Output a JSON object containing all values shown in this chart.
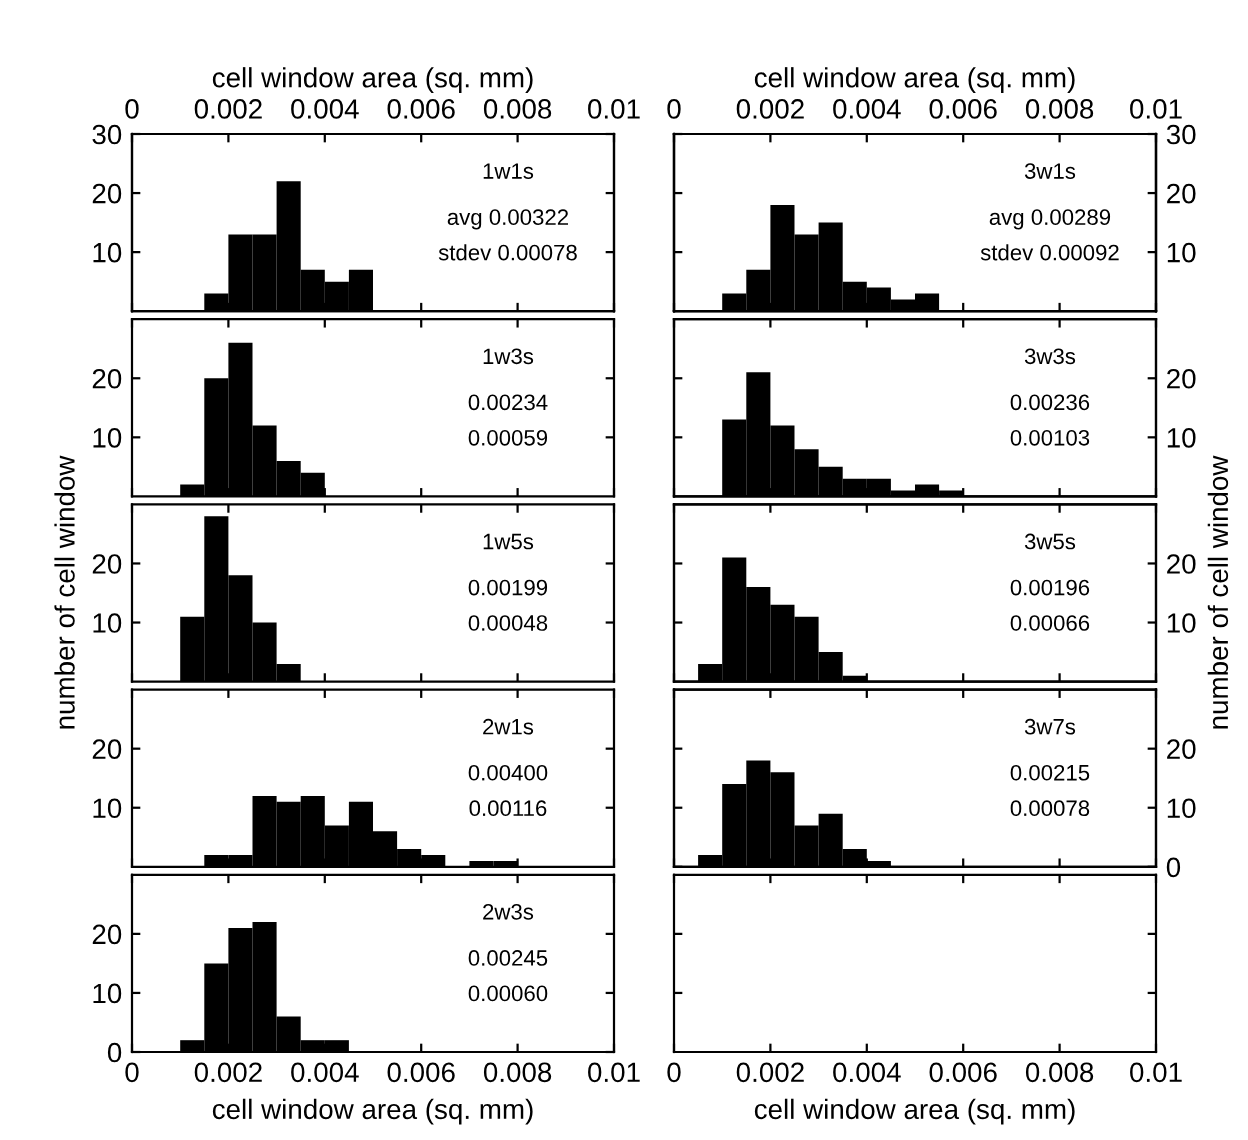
{
  "chart_data": [
    {
      "type": "histogram",
      "annotations": [
        "1w1s",
        "avg 0.00322",
        "stdev 0.00078"
      ],
      "bins": [
        0.0015,
        0.002,
        0.0025,
        0.003,
        0.0035,
        0.004,
        0.0045,
        0.005
      ],
      "values": [
        3,
        13,
        13,
        22,
        7,
        5,
        7
      ],
      "color": "#000000",
      "xlim": [
        0,
        0.01
      ],
      "xticks": [
        0,
        0.002,
        0.004,
        0.006,
        0.008,
        0.01
      ],
      "x2lim": [
        0,
        0.01
      ],
      "x2ticks": [
        0,
        0.002,
        0.004,
        0.006,
        0.008,
        0.01
      ],
      "x2label": "cell window area (sq. mm)",
      "ylim": [
        0,
        30
      ],
      "yticks": [
        10,
        20,
        30
      ],
      "tick_labels": "y",
      "grid": false
    },
    {
      "type": "histogram",
      "annotations": [
        "3w1s",
        "avg 0.00289",
        "stdev 0.00092"
      ],
      "bins": [
        0.001,
        0.0015,
        0.002,
        0.0025,
        0.003,
        0.0035,
        0.004,
        0.0045,
        0.005,
        0.0055
      ],
      "series": [
        {
          "axis": "y2",
          "color": "#000000",
          "values": [
            3,
            7,
            18,
            13,
            15,
            5,
            4,
            2,
            3
          ]
        }
      ],
      "xlim": [
        0,
        0.01
      ],
      "xticks": [
        0,
        0.002,
        0.004,
        0.006,
        0.008,
        0.01
      ],
      "x2lim": [
        0,
        0.01
      ],
      "x2ticks": [
        0,
        0.002,
        0.004,
        0.006,
        0.008,
        0.01
      ],
      "x2label": "cell window area (sq. mm)",
      "y2lim": [
        0,
        30
      ],
      "y2ticks": [
        10,
        20,
        30
      ],
      "tick_labels": "y",
      "grid": false
    },
    {
      "type": "histogram",
      "annotations": [
        "1w3s",
        "0.00234",
        "0.00059"
      ],
      "bins": [
        0.001,
        0.0015,
        0.002,
        0.0025,
        0.003,
        0.0035,
        0.004
      ],
      "values": [
        2,
        20,
        26,
        12,
        6,
        4
      ],
      "color": "#000000",
      "xlim": [
        0,
        0.01
      ],
      "xticks": [
        0,
        0.002,
        0.004,
        0.006,
        0.008,
        0.01
      ],
      "ylim": [
        0,
        30
      ],
      "yticks": [
        10,
        20
      ],
      "tick_labels": "y",
      "grid": false
    },
    {
      "type": "histogram",
      "annotations": [
        "3w3s",
        "0.00236",
        "0.00103"
      ],
      "bins": [
        0.001,
        0.0015,
        0.002,
        0.0025,
        0.003,
        0.0035,
        0.004,
        0.0045,
        0.005,
        0.0055,
        0.006
      ],
      "series": [
        {
          "axis": "y2",
          "color": "#000000",
          "values": [
            13,
            21,
            12,
            8,
            5,
            3,
            3,
            1,
            2,
            1
          ]
        }
      ],
      "xlim": [
        0,
        0.01
      ],
      "xticks": [
        0,
        0.002,
        0.004,
        0.006,
        0.008,
        0.01
      ],
      "y2lim": [
        0,
        30
      ],
      "y2ticks": [
        10,
        20
      ],
      "tick_labels": "y",
      "grid": false
    },
    {
      "type": "histogram",
      "annotations": [
        "1w5s",
        "0.00199",
        "0.00048"
      ],
      "bins": [
        0.001,
        0.0015,
        0.002,
        0.0025,
        0.003,
        0.0035
      ],
      "values": [
        11,
        28,
        18,
        10,
        3
      ],
      "color": "#000000",
      "xlim": [
        0,
        0.01
      ],
      "xticks": [
        0,
        0.002,
        0.004,
        0.006,
        0.008,
        0.01
      ],
      "ylim": [
        0,
        30
      ],
      "yticks": [
        10,
        20
      ],
      "ylabel": "number of cell window",
      "tick_labels": "y",
      "grid": false
    },
    {
      "type": "histogram",
      "annotations": [
        "3w5s",
        "0.00196",
        "0.00066"
      ],
      "bins": [
        0.0005,
        0.001,
        0.0015,
        0.002,
        0.0025,
        0.003,
        0.0035,
        0.004
      ],
      "series": [
        {
          "axis": "y2",
          "color": "#000000",
          "values": [
            3,
            21,
            16,
            13,
            11,
            5,
            1
          ]
        }
      ],
      "xlim": [
        0,
        0.01
      ],
      "xticks": [
        0,
        0.002,
        0.004,
        0.006,
        0.008,
        0.01
      ],
      "y2lim": [
        0,
        30
      ],
      "y2ticks": [
        10,
        20
      ],
      "y2label": "number of cell window",
      "tick_labels": "y",
      "grid": false
    },
    {
      "type": "histogram",
      "annotations": [
        "2w1s",
        "0.00400",
        "0.00116"
      ],
      "bins": [
        0.0015,
        0.002,
        0.0025,
        0.003,
        0.0035,
        0.004,
        0.0045,
        0.005,
        0.0055,
        0.006,
        0.0065,
        0.007,
        0.0075,
        0.008
      ],
      "values": [
        2,
        2,
        12,
        11,
        12,
        7,
        11,
        6,
        3,
        2,
        0,
        1,
        1
      ],
      "color": "#000000",
      "xlim": [
        0,
        0.01
      ],
      "xticks": [
        0,
        0.002,
        0.004,
        0.006,
        0.008,
        0.01
      ],
      "ylim": [
        0,
        30
      ],
      "yticks": [
        10,
        20
      ],
      "tick_labels": "y",
      "grid": false
    },
    {
      "type": "histogram",
      "annotations": [
        "3w7s",
        "0.00215",
        "0.00078"
      ],
      "bins": [
        0.0005,
        0.001,
        0.0015,
        0.002,
        0.0025,
        0.003,
        0.0035,
        0.004,
        0.0045
      ],
      "series": [
        {
          "axis": "y2",
          "color": "#000000",
          "values": [
            2,
            14,
            18,
            16,
            7,
            9,
            3,
            1
          ]
        }
      ],
      "xlim": [
        0,
        0.01
      ],
      "xticks": [
        0,
        0.002,
        0.004,
        0.006,
        0.008,
        0.01
      ],
      "y2lim": [
        0,
        30
      ],
      "y2ticks": [
        0,
        10,
        20
      ],
      "tick_labels": "y",
      "grid": false
    },
    {
      "type": "histogram",
      "annotations": [
        "2w3s",
        "0.00245",
        "0.00060"
      ],
      "bins": [
        0.001,
        0.0015,
        0.002,
        0.0025,
        0.003,
        0.0035,
        0.004,
        0.0045
      ],
      "values": [
        2,
        15,
        21,
        22,
        6,
        2,
        2
      ],
      "color": "#000000",
      "xlim": [
        0,
        0.01
      ],
      "xticks": [
        0,
        0.002,
        0.004,
        0.006,
        0.008,
        0.01
      ],
      "xlabel": "cell window area (sq. mm)",
      "ylim": [
        0,
        30
      ],
      "yticks": [
        0,
        10,
        20
      ],
      "grid": false
    },
    {
      "type": "histogram",
      "xlim": [
        0,
        0.01
      ],
      "xticks": [
        0,
        0.002,
        0.004,
        0.006,
        0.008,
        0.01
      ],
      "xlabel": "cell window area (sq. mm)",
      "ylim": [
        0,
        30
      ],
      "yticks": [
        10,
        20
      ],
      "tick_labels": "x",
      "grid": false
    }
  ]
}
